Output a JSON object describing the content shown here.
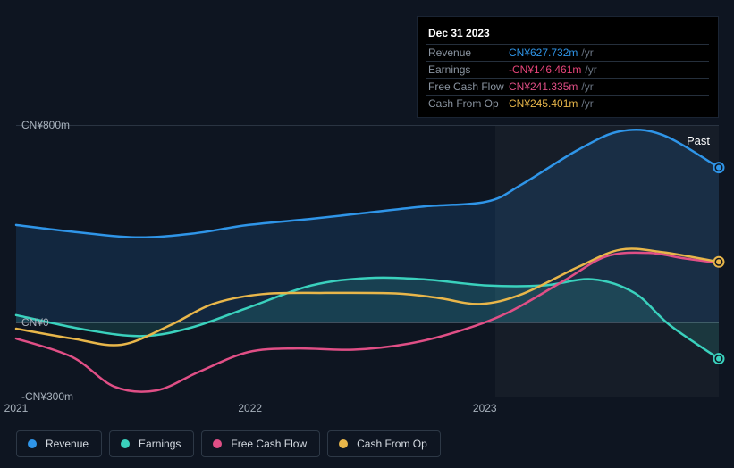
{
  "chart": {
    "type": "area-line",
    "background_color": "#0e1521",
    "grid_color": "#2a3442",
    "baseline_color": "#424c5a",
    "text_color": "#a8b2bd",
    "past_label": "Past",
    "y_axis": {
      "min": -300,
      "max": 800,
      "ticks": [
        {
          "value": 800,
          "label": "CN¥800m"
        },
        {
          "value": 0,
          "label": "CN¥0"
        },
        {
          "value": -300,
          "label": "-CN¥300m"
        }
      ]
    },
    "x_axis": {
      "ticks": [
        {
          "t": 0.0,
          "label": "2021"
        },
        {
          "t": 0.333,
          "label": "2022"
        },
        {
          "t": 0.667,
          "label": "2023"
        }
      ]
    },
    "highlight": {
      "t_start": 0.682,
      "t_end": 1.0
    },
    "tooltip": {
      "date": "Dec 31 2023",
      "rows": [
        {
          "label": "Revenue",
          "value": "CN¥627.732m",
          "unit": "/yr",
          "color": "#2f95e8"
        },
        {
          "label": "Earnings",
          "value": "-CN¥146.461m",
          "unit": "/yr",
          "color": "#e8447a"
        },
        {
          "label": "Free Cash Flow",
          "value": "CN¥241.335m",
          "unit": "/yr",
          "color": "#e04f86"
        },
        {
          "label": "Cash From Op",
          "value": "CN¥245.401m",
          "unit": "/yr",
          "color": "#e8b64a"
        }
      ]
    },
    "series": [
      {
        "name": "Revenue",
        "legend_label": "Revenue",
        "color": "#2f95e8",
        "fill_opacity": 0.15,
        "line_width": 2.5,
        "points": [
          {
            "t": 0.0,
            "v": 395
          },
          {
            "t": 0.08,
            "v": 368
          },
          {
            "t": 0.17,
            "v": 345
          },
          {
            "t": 0.25,
            "v": 360
          },
          {
            "t": 0.33,
            "v": 395
          },
          {
            "t": 0.42,
            "v": 420
          },
          {
            "t": 0.5,
            "v": 445
          },
          {
            "t": 0.58,
            "v": 470
          },
          {
            "t": 0.67,
            "v": 490
          },
          {
            "t": 0.72,
            "v": 560
          },
          {
            "t": 0.8,
            "v": 700
          },
          {
            "t": 0.86,
            "v": 775
          },
          {
            "t": 0.92,
            "v": 760
          },
          {
            "t": 1.0,
            "v": 627.7
          }
        ],
        "end_marker": true
      },
      {
        "name": "Earnings",
        "legend_label": "Earnings",
        "color": "#3ad1bd",
        "fill_opacity": 0.15,
        "line_width": 2.5,
        "points": [
          {
            "t": 0.0,
            "v": 30
          },
          {
            "t": 0.1,
            "v": -30
          },
          {
            "t": 0.18,
            "v": -55
          },
          {
            "t": 0.25,
            "v": -20
          },
          {
            "t": 0.33,
            "v": 60
          },
          {
            "t": 0.42,
            "v": 150
          },
          {
            "t": 0.5,
            "v": 180
          },
          {
            "t": 0.58,
            "v": 175
          },
          {
            "t": 0.67,
            "v": 150
          },
          {
            "t": 0.75,
            "v": 150
          },
          {
            "t": 0.82,
            "v": 175
          },
          {
            "t": 0.88,
            "v": 120
          },
          {
            "t": 0.93,
            "v": -10
          },
          {
            "t": 1.0,
            "v": -146.5
          }
        ],
        "end_marker": true
      },
      {
        "name": "Free Cash Flow",
        "legend_label": "Free Cash Flow",
        "color": "#e04f86",
        "fill_opacity": 0.0,
        "line_width": 2.5,
        "points": [
          {
            "t": 0.0,
            "v": -65
          },
          {
            "t": 0.08,
            "v": -140
          },
          {
            "t": 0.14,
            "v": -260
          },
          {
            "t": 0.2,
            "v": -275
          },
          {
            "t": 0.26,
            "v": -200
          },
          {
            "t": 0.33,
            "v": -120
          },
          {
            "t": 0.4,
            "v": -105
          },
          {
            "t": 0.48,
            "v": -110
          },
          {
            "t": 0.56,
            "v": -85
          },
          {
            "t": 0.63,
            "v": -35
          },
          {
            "t": 0.7,
            "v": 40
          },
          {
            "t": 0.78,
            "v": 170
          },
          {
            "t": 0.84,
            "v": 268
          },
          {
            "t": 0.9,
            "v": 282
          },
          {
            "t": 0.95,
            "v": 260
          },
          {
            "t": 1.0,
            "v": 241.3
          }
        ],
        "end_marker": false
      },
      {
        "name": "Cash From Op",
        "legend_label": "Cash From Op",
        "color": "#e8b64a",
        "fill_opacity": 0.0,
        "line_width": 2.5,
        "points": [
          {
            "t": 0.0,
            "v": -25
          },
          {
            "t": 0.08,
            "v": -65
          },
          {
            "t": 0.15,
            "v": -90
          },
          {
            "t": 0.22,
            "v": -10
          },
          {
            "t": 0.28,
            "v": 75
          },
          {
            "t": 0.35,
            "v": 115
          },
          {
            "t": 0.44,
            "v": 120
          },
          {
            "t": 0.54,
            "v": 118
          },
          {
            "t": 0.6,
            "v": 100
          },
          {
            "t": 0.66,
            "v": 75
          },
          {
            "t": 0.72,
            "v": 115
          },
          {
            "t": 0.8,
            "v": 225
          },
          {
            "t": 0.86,
            "v": 295
          },
          {
            "t": 0.92,
            "v": 285
          },
          {
            "t": 1.0,
            "v": 245.4
          }
        ],
        "end_marker": true
      }
    ]
  }
}
